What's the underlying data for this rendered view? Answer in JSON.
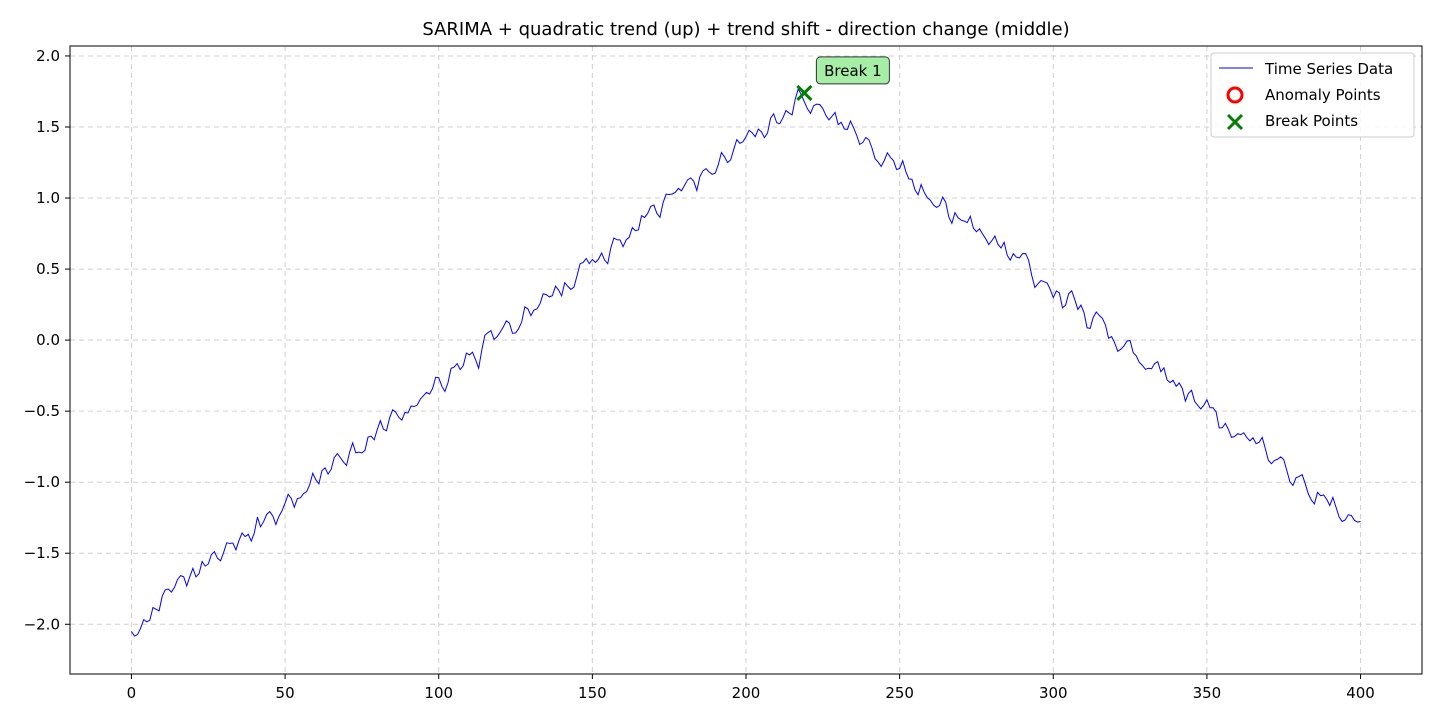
{
  "chart_data": {
    "type": "line",
    "title": "SARIMA + quadratic trend (up) + trend shift - direction change (middle)",
    "xlabel": "",
    "ylabel": "",
    "xlim": [
      -20,
      420
    ],
    "ylim": [
      -2.35,
      2.07
    ],
    "xticks": [
      0,
      50,
      100,
      150,
      200,
      250,
      300,
      350,
      400
    ],
    "yticks": [
      -2.0,
      -1.5,
      -1.0,
      -0.5,
      0.0,
      0.5,
      1.0,
      1.5,
      2.0
    ],
    "xtick_labels": [
      "0",
      "50",
      "100",
      "150",
      "200",
      "250",
      "300",
      "350",
      "400"
    ],
    "ytick_labels": [
      "−2.0",
      "−1.5",
      "−1.0",
      "−0.5",
      "0.0",
      "0.5",
      "1.0",
      "1.5",
      "2.0"
    ],
    "grid": true,
    "legend_position": "top-right",
    "legend": [
      "Time Series Data",
      "Anomaly Points",
      "Break Points"
    ],
    "colors": {
      "series": "#0000ff",
      "anomaly": "#ff0000",
      "break": "#008000",
      "annotation_bg": "#a6eea6",
      "grid": "#d0d0d0"
    },
    "series": [
      {
        "name": "Time Series Data",
        "x_start": 0,
        "x_step": 1,
        "trend_knots": [
          [
            0,
            -2.02
          ],
          [
            219,
            1.72
          ],
          [
            400,
            -1.33
          ]
        ],
        "noise_amplitude": 0.11
      }
    ],
    "anomaly_points": [],
    "break_points": [
      {
        "x": 219,
        "y": 1.74,
        "label": "Break 1"
      }
    ]
  }
}
